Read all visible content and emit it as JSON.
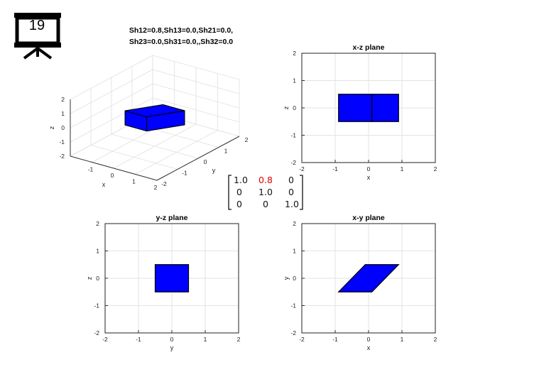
{
  "slide": {
    "number": "19",
    "icon": "presentation-board-icon",
    "title_3d": [
      "Sh12=0.8,Sh13=0.0,Sh21=0.0,",
      "Sh23=0.0,Sh31=0.0,,Sh32=0.0"
    ],
    "matrix": [
      [
        "1.0",
        "0.8",
        "0"
      ],
      [
        "0",
        "1.0",
        "0"
      ],
      [
        "0",
        "0",
        "1.0"
      ]
    ],
    "matrix_highlight_color": "#e00000"
  },
  "chart_data": [
    {
      "type": "3d-polyhedron",
      "title": "",
      "xlabel": "x",
      "ylabel": "y",
      "zlabel": "z",
      "xlim": [
        -2,
        2
      ],
      "ylim": [
        -2,
        2
      ],
      "zlim": [
        -2,
        2
      ],
      "xticks": [
        "-1",
        "0",
        "1",
        "2"
      ],
      "yticks": [
        "-2",
        "-1",
        "0",
        "1",
        "2"
      ],
      "zticks": [
        "-2",
        "-1",
        "0",
        "1",
        "2"
      ],
      "grid": true,
      "fill_color": "#0000ff",
      "solid": {
        "vertices": [
          [
            -0.5,
            -0.5,
            -0.5
          ],
          [
            0.5,
            -0.5,
            -0.5
          ],
          [
            0.5,
            0.5,
            -0.5
          ],
          [
            -0.5,
            0.5,
            -0.5
          ],
          [
            -0.5,
            -0.5,
            0.5
          ],
          [
            0.5,
            -0.5,
            0.5
          ],
          [
            0.5,
            0.5,
            0.5
          ],
          [
            -0.5,
            0.5,
            0.5
          ]
        ],
        "description": "unit cube sheared with Sh12=0.8"
      }
    },
    {
      "type": "polygon",
      "title": "x-z plane",
      "xlabel": "x",
      "ylabel": "z",
      "xlim": [
        -2,
        2
      ],
      "ylim": [
        -2,
        2
      ],
      "xticks": [
        "-2",
        "-1",
        "0",
        "1",
        "2"
      ],
      "yticks": [
        "-2",
        "-1",
        "0",
        "1",
        "2"
      ],
      "grid": true,
      "fill_color": "#0000ff",
      "polygons": [
        [
          [
            -0.9,
            -0.5
          ],
          [
            0.1,
            -0.5
          ],
          [
            0.1,
            0.5
          ],
          [
            -0.9,
            0.5
          ]
        ],
        [
          [
            0.1,
            -0.5
          ],
          [
            0.9,
            -0.5
          ],
          [
            0.9,
            0.5
          ],
          [
            0.1,
            0.5
          ]
        ]
      ]
    },
    {
      "type": "polygon",
      "title": "y-z plane",
      "xlabel": "y",
      "ylabel": "z",
      "xlim": [
        -2,
        2
      ],
      "ylim": [
        -2,
        2
      ],
      "xticks": [
        "-2",
        "-1",
        "0",
        "1",
        "2"
      ],
      "yticks": [
        "-2",
        "-1",
        "0",
        "1",
        "2"
      ],
      "grid": true,
      "fill_color": "#0000ff",
      "polygons": [
        [
          [
            -0.5,
            -0.5
          ],
          [
            0.5,
            -0.5
          ],
          [
            0.5,
            0.5
          ],
          [
            -0.5,
            0.5
          ]
        ]
      ]
    },
    {
      "type": "polygon",
      "title": "x-y plane",
      "xlabel": "x",
      "ylabel": "y",
      "xlim": [
        -2,
        2
      ],
      "ylim": [
        -2,
        2
      ],
      "xticks": [
        "-2",
        "-1",
        "0",
        "1",
        "2"
      ],
      "yticks": [
        "-2",
        "-1",
        "0",
        "1",
        "2"
      ],
      "grid": true,
      "fill_color": "#0000ff",
      "polygons": [
        [
          [
            -0.9,
            -0.5
          ],
          [
            0.1,
            -0.5
          ],
          [
            0.9,
            0.5
          ],
          [
            -0.1,
            0.5
          ]
        ]
      ]
    }
  ]
}
